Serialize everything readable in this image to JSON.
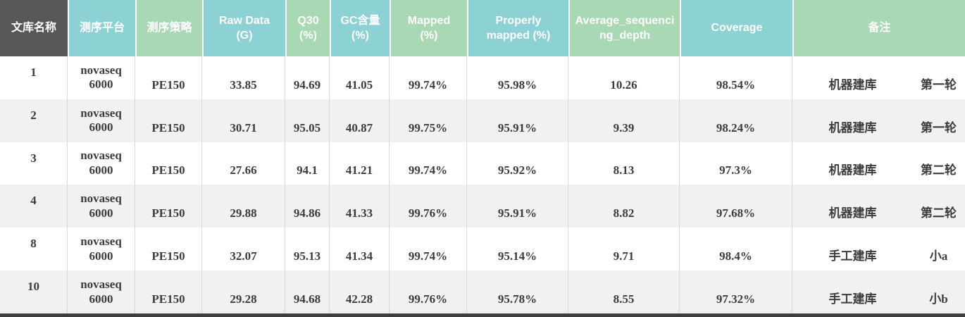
{
  "colors": {
    "header_dark": "#585757",
    "header_teal": "#8CD1D3",
    "header_green": "#A9D8B4",
    "row_alt": "#F1F1F1",
    "cell_border": "#DADADA",
    "data_text": "#3C3C3C",
    "bottom_bar": "#3F3F3F"
  },
  "table": {
    "columns": [
      {
        "key": "library",
        "label": "文库名称",
        "color": "dark",
        "break_all": false
      },
      {
        "key": "platform",
        "label": "测序平台",
        "color": "teal",
        "break_all": false
      },
      {
        "key": "strategy",
        "label": "测序策略",
        "color": "green",
        "break_all": false
      },
      {
        "key": "raw_data",
        "label": "Raw Data\n(G)",
        "color": "teal",
        "break_all": false
      },
      {
        "key": "q30",
        "label": "Q30\n(%)",
        "color": "green",
        "break_all": false
      },
      {
        "key": "gc",
        "label": "GC含量\n(%)",
        "color": "teal",
        "break_all": false
      },
      {
        "key": "mapped",
        "label": "Mapped\n(%)",
        "color": "green",
        "break_all": false
      },
      {
        "key": "properly_mapped",
        "label": "Properly\nmapped  (%)",
        "color": "teal",
        "break_all": false
      },
      {
        "key": "avg_depth",
        "label": "Average_sequencing_depth",
        "color": "green",
        "break_all": true
      },
      {
        "key": "coverage",
        "label": "Coverage",
        "color": "teal",
        "break_all": false
      },
      {
        "key": "remark",
        "label": "备注",
        "color": "green",
        "break_all": false
      }
    ],
    "rows": [
      {
        "library": "1",
        "platform": "novaseq\n6000",
        "strategy": "PE150",
        "raw_data": "33.85",
        "q30": "94.69",
        "gc": "41.05",
        "mapped": "99.74%",
        "properly_mapped": "95.98%",
        "avg_depth": "10.26",
        "coverage": "98.54%",
        "remark_method": "机器建库",
        "remark_round": "第一轮"
      },
      {
        "library": "2",
        "platform": "novaseq\n6000",
        "strategy": "PE150",
        "raw_data": "30.71",
        "q30": "95.05",
        "gc": "40.87",
        "mapped": "99.75%",
        "properly_mapped": "95.91%",
        "avg_depth": "9.39",
        "coverage": "98.24%",
        "remark_method": "机器建库",
        "remark_round": "第一轮"
      },
      {
        "library": "3",
        "platform": "novaseq\n6000",
        "strategy": "PE150",
        "raw_data": "27.66",
        "q30": "94.1",
        "gc": "41.21",
        "mapped": "99.74%",
        "properly_mapped": "95.92%",
        "avg_depth": "8.13",
        "coverage": "97.3%",
        "remark_method": "机器建库",
        "remark_round": "第二轮"
      },
      {
        "library": "4",
        "platform": "novaseq\n6000",
        "strategy": "PE150",
        "raw_data": "29.88",
        "q30": "94.86",
        "gc": "41.33",
        "mapped": "99.76%",
        "properly_mapped": "95.91%",
        "avg_depth": "8.82",
        "coverage": "97.68%",
        "remark_method": "机器建库",
        "remark_round": "第二轮"
      },
      {
        "library": "8",
        "platform": "novaseq\n6000",
        "strategy": "PE150",
        "raw_data": "32.07",
        "q30": "95.13",
        "gc": "41.34",
        "mapped": "99.74%",
        "properly_mapped": "95.14%",
        "avg_depth": "9.71",
        "coverage": "98.4%",
        "remark_method": "手工建库",
        "remark_round": "小a"
      },
      {
        "library": "10",
        "platform": "novaseq\n6000",
        "strategy": "PE150",
        "raw_data": "29.28",
        "q30": "94.68",
        "gc": "42.28",
        "mapped": "99.76%",
        "properly_mapped": "95.78%",
        "avg_depth": "8.55",
        "coverage": "97.32%",
        "remark_method": "手工建库",
        "remark_round": "小b"
      }
    ]
  }
}
